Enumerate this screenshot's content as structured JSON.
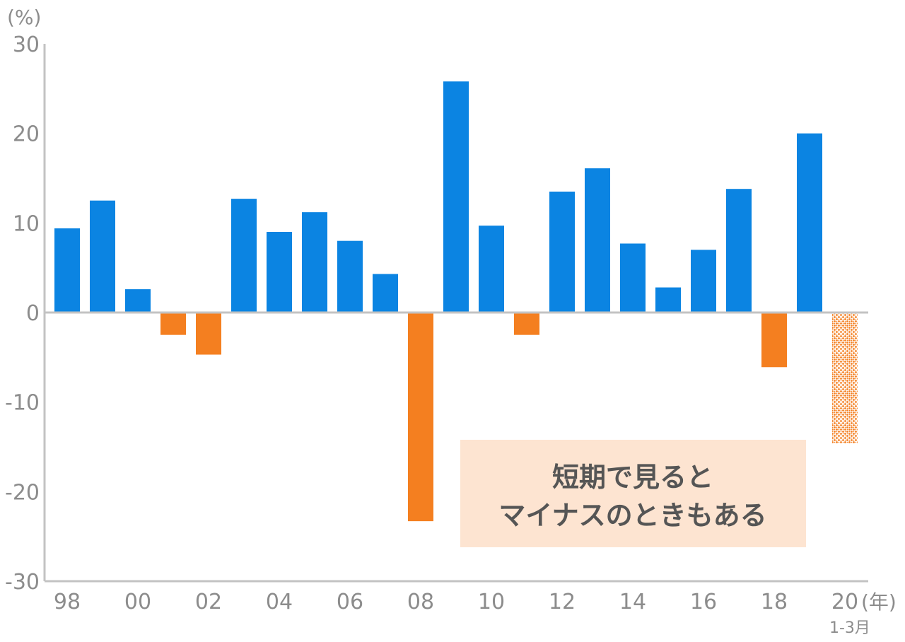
{
  "chart_data": {
    "type": "bar",
    "y_unit_label": "(%)",
    "x_unit_label": "(年)",
    "last_bar_sublabel": "1-3月",
    "ylim": [
      -30,
      30
    ],
    "y_ticks": [
      "30",
      "20",
      "10",
      "0",
      "-10",
      "-20",
      "-30"
    ],
    "y_tick_values": [
      30,
      20,
      10,
      0,
      -10,
      -20,
      -30
    ],
    "x_tick_labels": [
      "98",
      "00",
      "02",
      "04",
      "06",
      "08",
      "10",
      "12",
      "14",
      "16",
      "18",
      "20"
    ],
    "categories": [
      "98",
      "99",
      "00",
      "01",
      "02",
      "03",
      "04",
      "05",
      "06",
      "07",
      "08",
      "09",
      "10",
      "11",
      "12",
      "13",
      "14",
      "15",
      "16",
      "17",
      "18",
      "19",
      "20"
    ],
    "values": [
      9.4,
      12.5,
      2.6,
      -2.5,
      -4.7,
      12.7,
      9.0,
      11.2,
      8.0,
      4.3,
      -23.3,
      25.8,
      9.7,
      -2.5,
      13.5,
      16.1,
      7.7,
      2.8,
      7.0,
      13.8,
      -6.1,
      20.0,
      -14.6
    ],
    "partial_period": [
      false,
      false,
      false,
      false,
      false,
      false,
      false,
      false,
      false,
      false,
      false,
      false,
      false,
      false,
      false,
      false,
      false,
      false,
      false,
      false,
      false,
      false,
      true
    ],
    "colors": {
      "positive": "#0b84e2",
      "negative": "#f47f20",
      "axis": "#c3c3c3",
      "note_bg": "#fde4d1"
    },
    "annotation": [
      "短期で見ると",
      "マイナスのときもある"
    ]
  }
}
